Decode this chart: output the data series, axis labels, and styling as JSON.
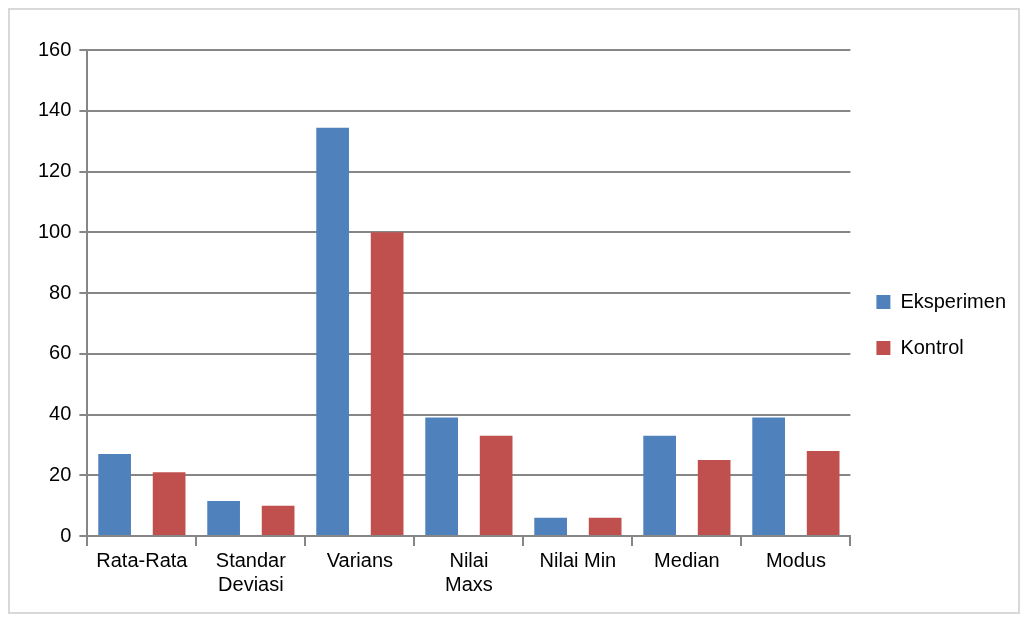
{
  "chart_data": {
    "type": "bar",
    "categories": [
      "Rata-Rata",
      "Standar\nDeviasi",
      "Varians",
      "Nilai\nMaxs",
      "Nilai Min",
      "Median",
      "Modus"
    ],
    "series": [
      {
        "name": "Eksperimen",
        "color": "#4f81bd",
        "values": [
          27,
          11.5,
          134.4,
          39,
          6,
          33,
          39
        ]
      },
      {
        "name": "Kontrol",
        "color": "#c0504d",
        "values": [
          21,
          10,
          100,
          33,
          6,
          25,
          28
        ]
      }
    ],
    "ylim": [
      0,
      160
    ],
    "yticks": [
      0,
      20,
      40,
      60,
      80,
      100,
      120,
      140,
      160
    ],
    "grid": "y",
    "legend": "right"
  }
}
